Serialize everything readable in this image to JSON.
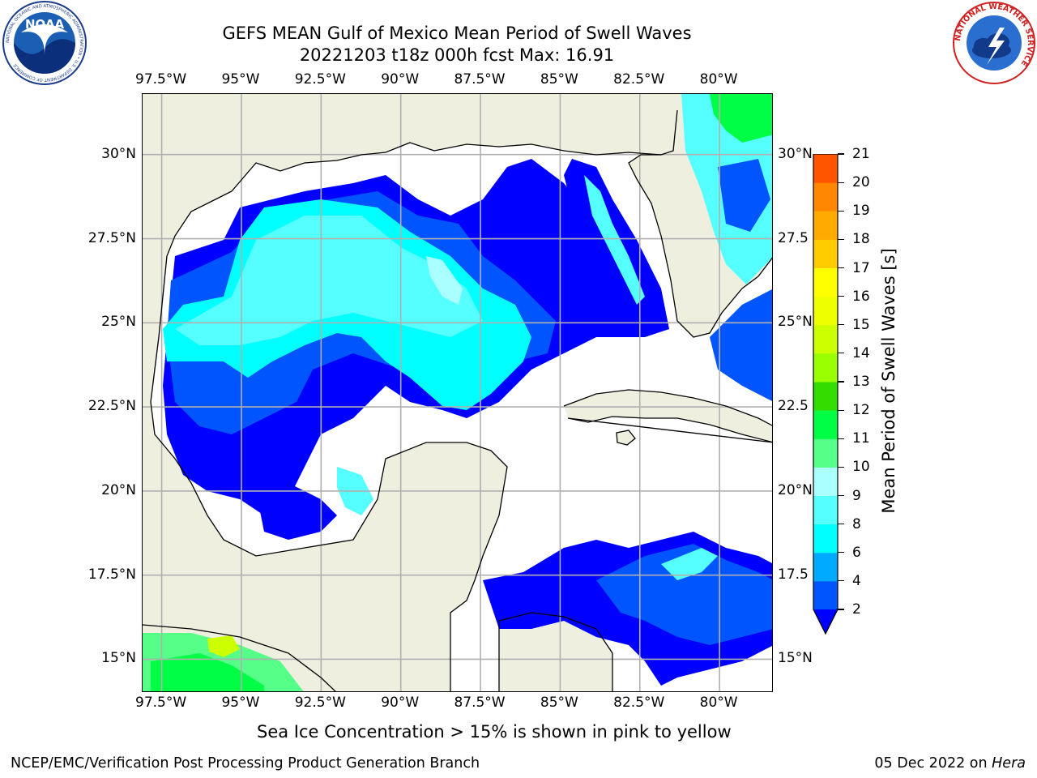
{
  "title": {
    "line1": "GEFS MEAN Gulf of Mexico Mean Period of Swell Waves",
    "line2": "20221203 t18z 000h fcst   Max: 16.91"
  },
  "axes": {
    "lon_labels": [
      "97.5°W",
      "95°W",
      "92.5°W",
      "90°W",
      "87.5°W",
      "85°W",
      "82.5°W",
      "80°W"
    ],
    "lat_labels_left": [
      "30°N",
      "27.5°N",
      "25°N",
      "22.5°N",
      "20°N",
      "17.5°N",
      "15°N"
    ],
    "lat_labels_right": [
      "30°N",
      "27.5",
      "25°N",
      "22.5",
      "20°N",
      "17.5",
      "15°N"
    ],
    "lon_range": [
      -98.1,
      -78.3
    ],
    "lat_range": [
      14.0,
      31.8
    ]
  },
  "colorbar": {
    "title": "Mean Period of Swell Waves [s]",
    "ticks": [
      "2",
      "4",
      "6",
      "8",
      "9",
      "10",
      "11",
      "12",
      "13",
      "14",
      "15",
      "16",
      "17",
      "18",
      "19",
      "20",
      "21"
    ],
    "colors": [
      "#0055ff",
      "#00aaff",
      "#00ffff",
      "#55ffff",
      "#aaffff",
      "#55ff88",
      "#00ff44",
      "#33dd00",
      "#99ff00",
      "#ccff00",
      "#eeff00",
      "#ffff00",
      "#ffcc00",
      "#ffaa00",
      "#ff8800",
      "#ff5500",
      "#ff2200"
    ],
    "underflow_color": "#0000ff"
  },
  "map_colors": {
    "land": "#efefdf",
    "ocean_blank": "#ffffff",
    "grid": "#b0b0b0",
    "coast": "#000000"
  },
  "note": "Sea Ice Concentration > 15% is shown in pink to yellow",
  "footer": {
    "left": "NCEP/EMC/Verification Post Processing Product Generation Branch",
    "right_date": "05 Dec 2022 on ",
    "right_host": "Hera"
  },
  "logos": {
    "left": {
      "icon": "noaa-logo-icon",
      "text": "NOAA",
      "ring_text": "NATIONAL OCEANIC AND ATMOSPHERIC ADMINISTRATION • U.S. DEPARTMENT OF COMMERCE"
    },
    "right": {
      "icon": "nws-logo-icon",
      "ring_text": "NATIONAL WEATHER SERVICE"
    }
  }
}
